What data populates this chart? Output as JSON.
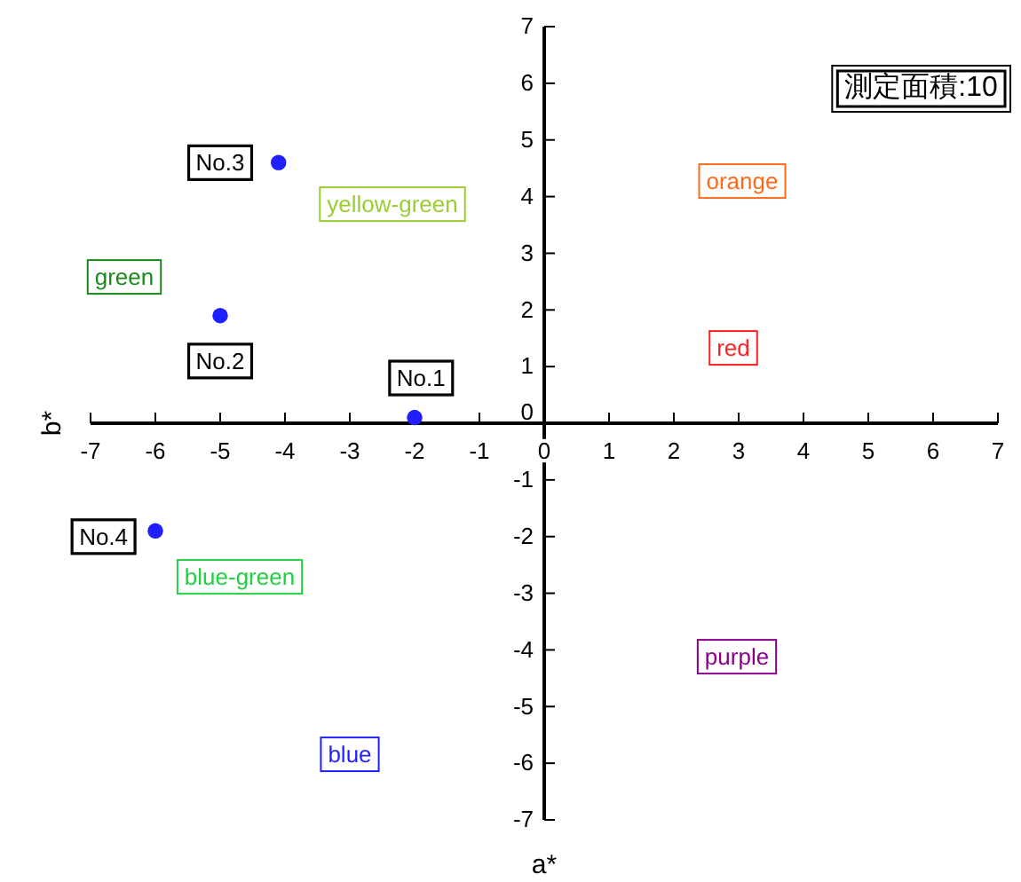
{
  "chart_data": {
    "type": "scatter",
    "xlabel": "a*",
    "ylabel": "b*",
    "xlim": [
      -7,
      7
    ],
    "ylim": [
      -7,
      7
    ],
    "xticks": [
      -7,
      -6,
      -5,
      -4,
      -3,
      -2,
      -1,
      0,
      1,
      2,
      3,
      4,
      5,
      6,
      7
    ],
    "yticks": [
      -7,
      -6,
      -5,
      -4,
      -3,
      -2,
      -1,
      0,
      1,
      2,
      3,
      4,
      5,
      6,
      7
    ],
    "marker": "circle",
    "series": [
      {
        "color": "#1f1fff",
        "x": [
          -2.0,
          -5.0,
          -4.1,
          -6.0
        ],
        "values": [
          0.1,
          1.9,
          4.6,
          -1.9
        ]
      }
    ],
    "annotations": [
      "測定面積:10",
      {
        "text": "No.1",
        "x": -1.9,
        "y": 0.8
      },
      {
        "text": "No.2",
        "x": -5.0,
        "y": 1.1
      },
      {
        "text": "No.3",
        "x": -5.0,
        "y": 4.6
      },
      {
        "text": "No.4",
        "x": -6.8,
        "y": -2.0
      },
      "orange",
      "red",
      "yellow-green",
      "green",
      "blue-green",
      "purple",
      "blue"
    ]
  }
}
